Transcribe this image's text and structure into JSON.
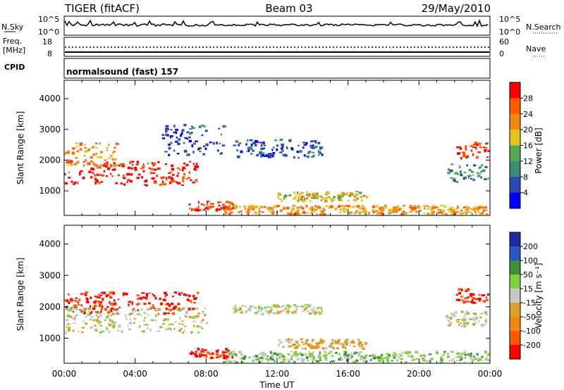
{
  "header": {
    "station": "TIGER (fitACF)",
    "beam": "Beam 03",
    "date": "29/May/2010"
  },
  "top_panels": {
    "nsky_label": "N.Sky",
    "nsky_ticks": [
      "10^5",
      "10^0"
    ],
    "nsearch_label": "N.Search",
    "nsearch_ticks": [
      "10^5",
      "10^0"
    ],
    "freq_label_1": "Freq.",
    "freq_label_2": "[MHz]",
    "freq_ticks": [
      "18",
      "8"
    ],
    "nave_label": "Nave",
    "nave_ticks": [
      "60",
      "0"
    ],
    "cpid_label": "CPID",
    "cpid_text": "normalsound (fast) 157"
  },
  "chart_data": [
    {
      "type": "heatmap",
      "name": "power",
      "ylabel": "Slant Range [km]",
      "xlabel": "",
      "yticks": [
        "1000",
        "2000",
        "3000",
        "4000"
      ],
      "ylim": [
        200,
        4600
      ],
      "xticks": [
        "00:00",
        "04:00",
        "08:00",
        "12:00",
        "16:00",
        "20:00",
        "00:00"
      ],
      "xlim_hours": [
        0,
        24
      ],
      "colorbar": {
        "label": "Power [dB]",
        "ticks": [
          "4",
          "8",
          "12",
          "16",
          "20",
          "24",
          "28"
        ],
        "colors": [
          "#0000ff",
          "#2a49b3",
          "#3e8a78",
          "#55a852",
          "#e6c51c",
          "#f08a10",
          "#ff5a00",
          "#ff0000"
        ]
      },
      "regions": [
        {
          "t0": 0.0,
          "t1": 7.5,
          "r0": 1200,
          "r1": 2000,
          "level": 7
        },
        {
          "t0": 0.0,
          "t1": 3.0,
          "r0": 1800,
          "r1": 2600,
          "level": 5
        },
        {
          "t0": 7.0,
          "t1": 9.5,
          "r0": 400,
          "r1": 700,
          "level": 6
        },
        {
          "t0": 9.0,
          "t1": 24.0,
          "r0": 250,
          "r1": 550,
          "level": 5
        },
        {
          "t0": 9.5,
          "t1": 14.5,
          "r0": 2100,
          "r1": 2700,
          "level": 1
        },
        {
          "t0": 5.5,
          "t1": 9.0,
          "r0": 2200,
          "r1": 3200,
          "level": 1
        },
        {
          "t0": 12.0,
          "t1": 17.0,
          "r0": 700,
          "r1": 1000,
          "level": 4
        },
        {
          "t0": 22.0,
          "t1": 24.0,
          "r0": 2100,
          "r1": 2600,
          "level": 7
        },
        {
          "t0": 21.5,
          "t1": 24.0,
          "r0": 1300,
          "r1": 1900,
          "level": 2
        }
      ]
    },
    {
      "type": "heatmap",
      "name": "velocity",
      "ylabel": "Slant Range [km]",
      "xlabel": "Time UT",
      "yticks": [
        "1000",
        "2000",
        "3000",
        "4000"
      ],
      "ylim": [
        200,
        4600
      ],
      "xticks": [
        "00:00",
        "04:00",
        "08:00",
        "12:00",
        "16:00",
        "20:00",
        "00:00"
      ],
      "xlim_hours": [
        0,
        24
      ],
      "colorbar": {
        "label": "Velocity [m s⁻¹]",
        "ticks": [
          "200",
          "100",
          "50",
          "15",
          "-15",
          "-50",
          "-100",
          "-200"
        ],
        "colors": [
          "#1a2aa8",
          "#2a57c2",
          "#3d8f3d",
          "#7fd13d",
          "#c8c8c8",
          "#d8a12a",
          "#f08a10",
          "#ff5a00",
          "#ff0000"
        ]
      },
      "regions": [
        {
          "t0": 0.0,
          "t1": 7.5,
          "r0": 1800,
          "r1": 2500,
          "level": 8
        },
        {
          "t0": 0.0,
          "t1": 8.0,
          "r0": 1200,
          "r1": 2000,
          "level": 4
        },
        {
          "t0": 7.0,
          "t1": 9.5,
          "r0": 400,
          "r1": 700,
          "level": 8
        },
        {
          "t0": 9.0,
          "t1": 24.0,
          "r0": 250,
          "r1": 600,
          "level": 3
        },
        {
          "t0": 9.5,
          "t1": 14.5,
          "r0": 1800,
          "r1": 2100,
          "level": 4
        },
        {
          "t0": 12.0,
          "t1": 17.0,
          "r0": 700,
          "r1": 1000,
          "level": 5
        },
        {
          "t0": 22.0,
          "t1": 24.0,
          "r0": 2100,
          "r1": 2600,
          "level": 8
        },
        {
          "t0": 21.5,
          "t1": 24.0,
          "r0": 1400,
          "r1": 1900,
          "level": 4
        }
      ]
    }
  ]
}
